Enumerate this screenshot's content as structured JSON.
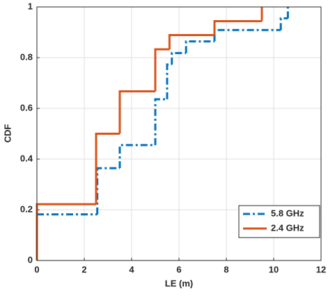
{
  "chart_data": {
    "type": "step",
    "xlabel": "LE (m)",
    "ylabel": "CDF",
    "xlim": [
      0,
      12
    ],
    "xticks": [
      0,
      2,
      4,
      6,
      8,
      10,
      12
    ],
    "ylim": [
      0,
      1
    ],
    "yticks": [
      0,
      0.2,
      0.4,
      0.6,
      0.8,
      1
    ],
    "grid": true,
    "legend": "lower right",
    "series": [
      {
        "name": "5.8 GHz",
        "color": "#0072bd",
        "dash": true,
        "x": [
          0,
          2.55,
          3.5,
          5,
          5.5,
          5.7,
          6.3,
          7.5,
          10.3,
          10.6
        ],
        "values": [
          0.182,
          0.364,
          0.455,
          0.636,
          0.773,
          0.818,
          0.864,
          0.909,
          0.955,
          1
        ]
      },
      {
        "name": "2.4 GHz",
        "color": "#d95319",
        "dash": false,
        "x": [
          0,
          0,
          2.5,
          3.5,
          5,
          5.6,
          7.5,
          9.5
        ],
        "values": [
          0,
          0.222,
          0.5,
          0.667,
          0.833,
          0.889,
          0.944,
          1
        ]
      }
    ]
  }
}
